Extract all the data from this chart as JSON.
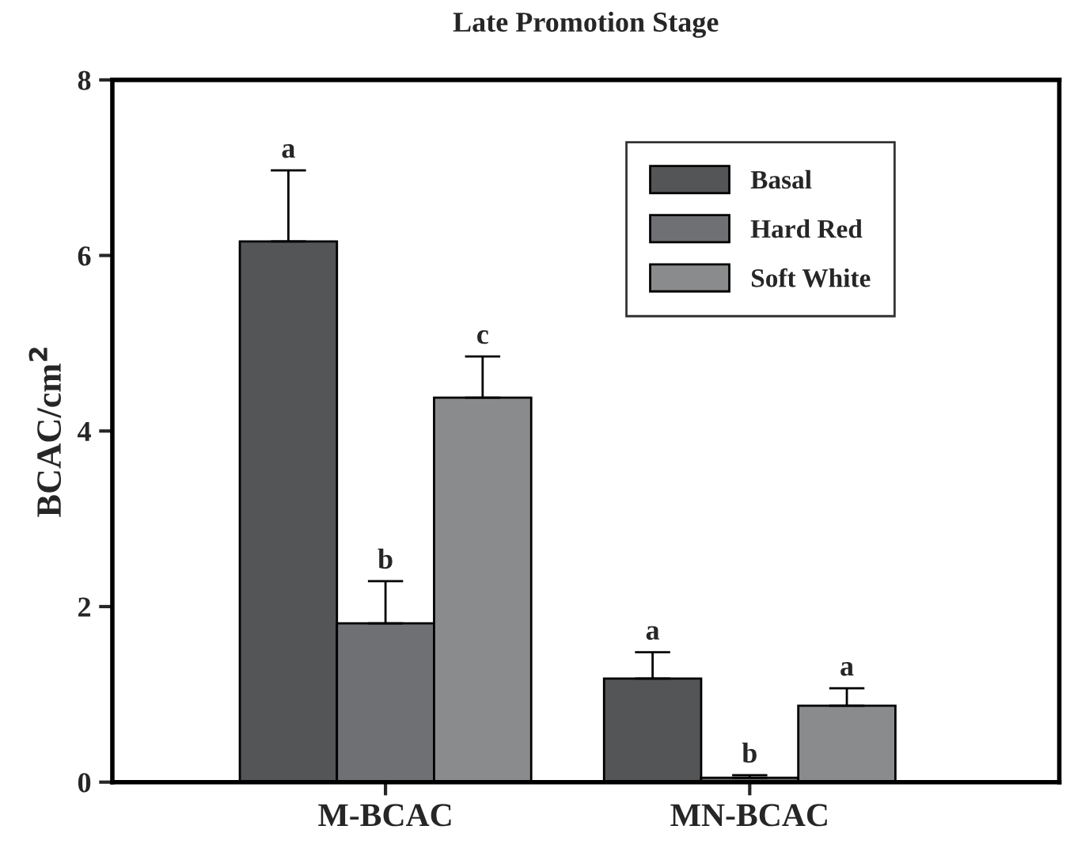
{
  "chart_data": {
    "type": "bar",
    "title": "Late Promotion Stage",
    "ylabel": "BCAC/cm$^{2}$",
    "categories": [
      "M-BCAC",
      "MN-BCAC"
    ],
    "series": [
      {
        "name": "Basal",
        "color": "#545557",
        "values": [
          6.16,
          1.18
        ],
        "errors": [
          [
            6.16,
            6.97
          ],
          [
            1.18,
            1.48
          ]
        ],
        "value_labels": [
          "a",
          "a"
        ]
      },
      {
        "name": "Hard Red",
        "color": "#6f7073",
        "values": [
          1.81,
          0.05
        ],
        "errors": [
          [
            1.81,
            2.29
          ],
          [
            0.05,
            0.08
          ]
        ],
        "value_labels": [
          "b",
          "b"
        ]
      },
      {
        "name": "Soft White",
        "color": "#8a8b8d",
        "values": [
          4.38,
          0.87
        ],
        "errors": [
          [
            4.38,
            4.85
          ],
          [
            0.87,
            1.07
          ]
        ],
        "value_labels": [
          "c",
          "a"
        ]
      }
    ],
    "ylim": [
      0,
      8
    ],
    "yticks": [
      0,
      2,
      4,
      6,
      8
    ],
    "legend": "top right",
    "grid": false
  }
}
